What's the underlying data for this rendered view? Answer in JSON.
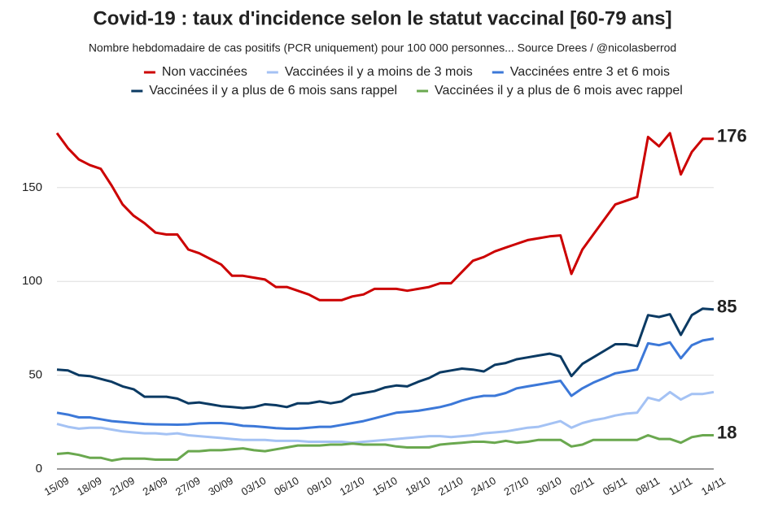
{
  "chart_data": {
    "type": "line",
    "title": "Covid-19 : taux d'incidence selon le statut vaccinal [60-79 ans]",
    "subtitle": "Nombre hebdomadaire de cas positifs (PCR uniquement) pour 100 000 personnes... Source Drees / @nicolasberrod",
    "categories": [
      "15/09",
      null,
      null,
      "18/09",
      null,
      null,
      "21/09",
      null,
      null,
      "24/09",
      null,
      null,
      "27/09",
      null,
      null,
      "30/09",
      null,
      null,
      "03/10",
      null,
      null,
      "06/10",
      null,
      null,
      "09/10",
      null,
      null,
      "12/10",
      null,
      null,
      "15/10",
      null,
      null,
      "18/10",
      null,
      null,
      "21/10",
      null,
      null,
      "24/10",
      null,
      null,
      "27/10",
      null,
      null,
      "30/10",
      null,
      null,
      "02/11",
      null,
      null,
      "05/11",
      null,
      null,
      "08/11",
      null,
      null,
      "11/11",
      null,
      null,
      "14/11"
    ],
    "series": [
      {
        "name": "Non vaccinées",
        "color": "#cc0000",
        "end_label": "176",
        "values": [
          179,
          171,
          165,
          162,
          160,
          151,
          141,
          135,
          131,
          126,
          125,
          125,
          117,
          115,
          112,
          109,
          103,
          103,
          102,
          101,
          97,
          97,
          95,
          93,
          90,
          90,
          90,
          92,
          93,
          96,
          96,
          96,
          95,
          96,
          97,
          99,
          99,
          105,
          111,
          113,
          116,
          118,
          120,
          122,
          123,
          124,
          124.5,
          104,
          117,
          125,
          133,
          141,
          143,
          145,
          177,
          172,
          179,
          157,
          169,
          176,
          176
        ]
      },
      {
        "name": "Vaccinées il y a moins de 3 mois",
        "color": "#a4c2f4",
        "values": [
          24,
          22.5,
          21.5,
          22,
          22,
          21,
          20,
          19.5,
          19,
          19,
          18.5,
          19,
          18,
          17.5,
          17,
          16.5,
          16,
          15.5,
          15.5,
          15.5,
          15,
          15,
          15,
          14.5,
          14.5,
          14.5,
          14.5,
          14,
          14.5,
          15,
          15.5,
          16,
          16.5,
          17,
          17.5,
          17.5,
          17,
          17.5,
          18,
          19,
          19.5,
          20,
          21,
          22,
          22.5,
          24,
          25.5,
          22,
          24.5,
          26,
          27,
          28.5,
          29.5,
          30,
          38,
          36.5,
          41,
          37,
          40,
          40,
          41
        ]
      },
      {
        "name": "Vaccinées entre 3 et 6 mois",
        "color": "#3c78d8",
        "values": [
          30,
          29,
          27.5,
          27.5,
          26.5,
          25.5,
          25,
          24.5,
          24,
          23.8,
          23.7,
          23.6,
          23.8,
          24.3,
          24.5,
          24.5,
          24,
          23,
          22.8,
          22.3,
          21.8,
          21.5,
          21.5,
          22,
          22.5,
          22.5,
          23.5,
          24.5,
          25.5,
          27,
          28.5,
          30,
          30.5,
          31,
          32,
          33,
          34.5,
          36.5,
          38,
          39,
          39,
          40.5,
          43,
          44,
          45,
          46,
          47,
          39,
          43,
          46,
          48.5,
          51,
          52,
          53,
          67,
          66,
          67.5,
          59,
          66,
          68.5,
          69.5
        ]
      },
      {
        "name": "Vaccinées il y a plus de 6 mois sans rappel",
        "color": "#0b3a63",
        "end_label": "85",
        "end_label_color": "#2f4f8f",
        "values": [
          53,
          52.5,
          50,
          49.5,
          48,
          46.5,
          44,
          42.5,
          38.5,
          38.5,
          38.5,
          37.5,
          35,
          35.5,
          34.5,
          33.5,
          33,
          32.5,
          33,
          34.5,
          34,
          33,
          35,
          35,
          36,
          35,
          36,
          39.5,
          40.5,
          41.5,
          43.5,
          44.5,
          44,
          46.5,
          48.5,
          51.5,
          52.5,
          53.5,
          53,
          52,
          55.5,
          56.5,
          58.5,
          59.5,
          60.5,
          61.5,
          60,
          49.5,
          56,
          59.5,
          63,
          66.5,
          66.5,
          65.5,
          82,
          81,
          82.5,
          71.5,
          82,
          85.5,
          85
        ]
      },
      {
        "name": "Vaccinées il y a plus de 6 mois avec rappel",
        "color": "#6aa84f",
        "end_label": "18",
        "values": [
          8,
          8.5,
          7.5,
          6,
          6,
          4.5,
          5.5,
          5.5,
          5.5,
          5,
          5,
          5,
          9.5,
          9.5,
          10,
          10,
          10.5,
          11,
          10,
          9.5,
          10.5,
          11.5,
          12.5,
          12.5,
          12.5,
          13,
          13,
          13.5,
          13,
          13,
          13,
          12,
          11.5,
          11.5,
          11.5,
          13,
          13.5,
          14,
          14.5,
          14.5,
          14,
          15,
          14,
          14.5,
          15.5,
          15.5,
          15.5,
          12,
          13,
          15.5,
          15.5,
          15.5,
          15.5,
          15.5,
          18,
          16,
          16,
          14,
          17,
          18,
          18
        ]
      }
    ],
    "ylim": [
      0,
      185
    ],
    "yticks": [
      0,
      50,
      100,
      150
    ],
    "grid": true,
    "legend": "top"
  }
}
